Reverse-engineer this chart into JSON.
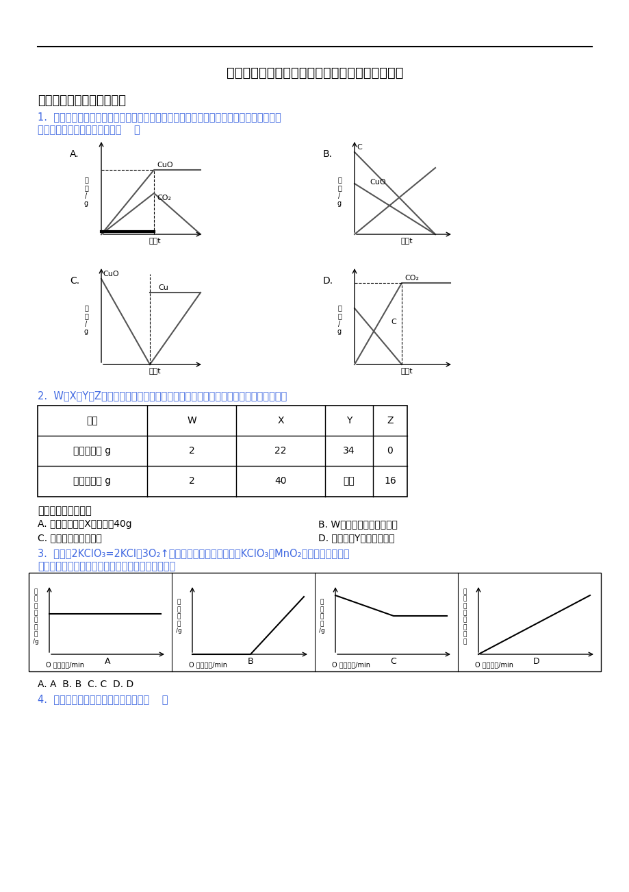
{
  "title": "深圳松岗陶源中英文学校化学上册期末试题和答案",
  "section1": "一、九年级化学上册选择题",
  "q1_line1": "1.  高温加热碳和氧化铜的混合物，恰好完全反应生成铜和二氧化碳，下列有关物质的质量",
  "q1_line2": "与反应时间的关系中正确的是（    ）",
  "q2_line": "2.  W、X、Y、Z四种物质在一定条件下充分反应后，测得反应前后各物质的质量如下：",
  "q3_line1": "3.  已知：2KClO₃=2KCl＋3O₂↑，下列图像表示一定质量的KClO₃和MnO₂固体混合物受热过",
  "q3_line2": "程中某些量随加热时间的变化趋势，其中不正确的是",
  "q4_line": "4.  下列除去少量杂质的方法正确的是（    ）",
  "wrong_label": "下列说法错误的是：",
  "optA": "A. 该反应中生成X的质量为40g",
  "optB": "B. W在反应中可能是催化剂",
  "optC": "C. 该反应属于分解反应",
  "optD": "D. 该反应中Y全部参加反应",
  "answer_line": "A. A  B. B  C. C  D. D",
  "table_headers": [
    "物质",
    "W",
    "X",
    "Y",
    "Z"
  ],
  "table_row1_label": "反应前质量 g",
  "table_row1_vals": [
    "2",
    "22",
    "34",
    "0"
  ],
  "table_row2_label": "反应后质量 g",
  "table_row2_vals": [
    "2",
    "40",
    "待测",
    "16"
  ],
  "bg_color": "#ffffff",
  "blue_color": "#4169E1",
  "black": "#000000",
  "gray": "#555555"
}
